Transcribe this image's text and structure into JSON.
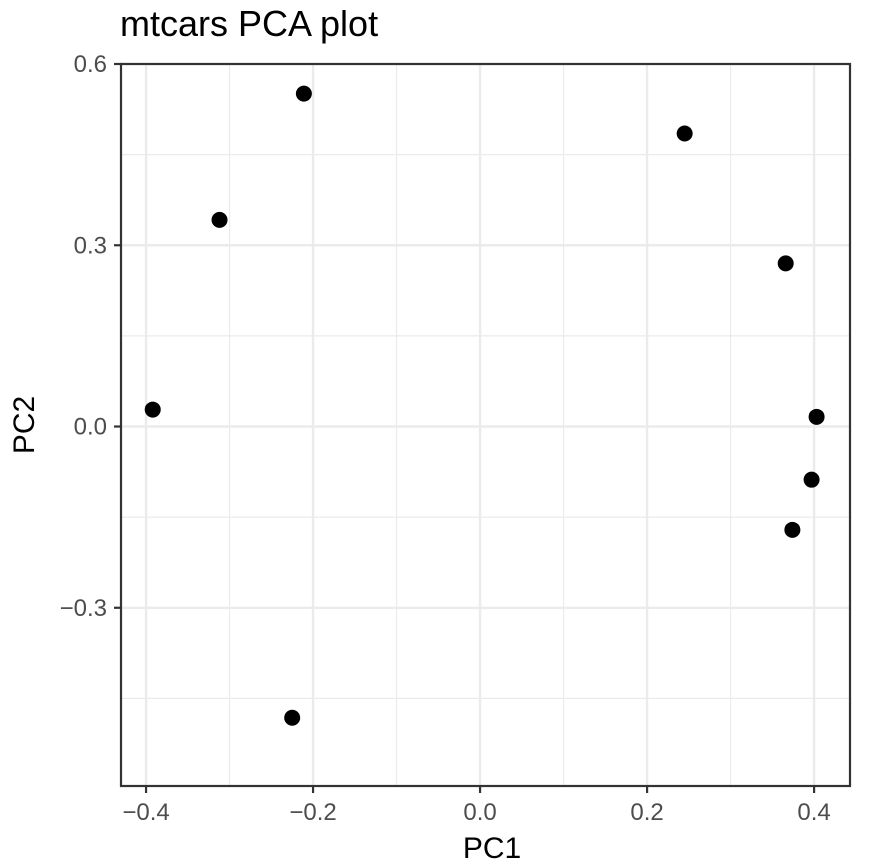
{
  "chart_data": {
    "type": "scatter",
    "title": "mtcars PCA plot",
    "xlabel": "PC1",
    "ylabel": "PC2",
    "xlim": [
      -0.43,
      0.443
    ],
    "ylim": [
      -0.595,
      0.6
    ],
    "x_ticks": [
      -0.4,
      -0.2,
      0.0,
      0.2,
      0.4
    ],
    "x_tick_labels": [
      "−0.4",
      "−0.2",
      "0.0",
      "0.2",
      "0.4"
    ],
    "y_ticks": [
      -0.3,
      0.0,
      0.3,
      0.6
    ],
    "y_tick_labels": [
      "−0.3",
      "0.0",
      "0.3",
      "0.6"
    ],
    "x_minor_ticks": [
      -0.3,
      -0.1,
      0.1,
      0.3
    ],
    "y_minor_ticks": [
      -0.45,
      -0.15,
      0.15,
      0.45
    ],
    "grid": true,
    "legend": "none",
    "point_color": "#000000",
    "panel_border_color": "#333333",
    "grid_color": "#ebebeb",
    "points": [
      {
        "x": -0.211,
        "y": 0.551
      },
      {
        "x": -0.312,
        "y": 0.342
      },
      {
        "x": -0.392,
        "y": 0.028
      },
      {
        "x": -0.225,
        "y": -0.482
      },
      {
        "x": 0.245,
        "y": 0.485
      },
      {
        "x": 0.366,
        "y": 0.27
      },
      {
        "x": 0.403,
        "y": 0.016
      },
      {
        "x": 0.397,
        "y": -0.088
      },
      {
        "x": 0.374,
        "y": -0.171
      }
    ]
  }
}
